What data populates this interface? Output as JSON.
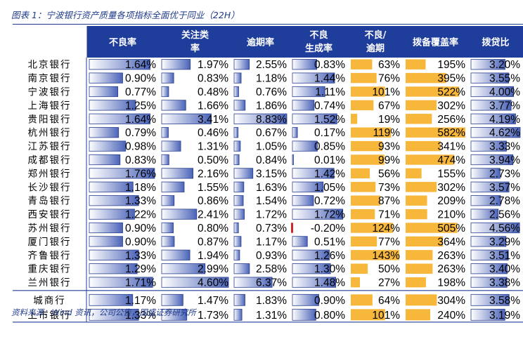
{
  "title": "图表 1：宁波银行资产质量各项指标全面优于同业（22H）",
  "source": "资料来源：Wind 资讯，公司公告，国盛证券研究所",
  "colors": {
    "header_bg": "#1f3e9c",
    "bar_blue": "#4a63b8",
    "bar_yellow": "#f7b73a",
    "bar_red": "#cc2a2a"
  },
  "chart_data": {
    "type": "table",
    "columns": [
      {
        "key": "npl",
        "label": [
          "不良率"
        ],
        "unit": "%",
        "decimals": 2,
        "max": 1.8
      },
      {
        "key": "attention",
        "label": [
          "关注类",
          "率"
        ],
        "unit": "%",
        "decimals": 2,
        "max": 4.6
      },
      {
        "key": "overdue",
        "label": [
          "逾期率"
        ],
        "unit": "%",
        "decimals": 2,
        "max": 8.83
      },
      {
        "key": "npl_gen",
        "label": [
          "不良",
          "生成率"
        ],
        "unit": "%",
        "decimals": 2,
        "max": 1.8
      },
      {
        "key": "npl_overdue",
        "label": [
          "不良/",
          "逾期"
        ],
        "unit": "%",
        "decimals": 0,
        "max": 145
      },
      {
        "key": "coverage",
        "label": [
          "拨备覆盖率"
        ],
        "unit": "%",
        "decimals": 0,
        "max": 582
      },
      {
        "key": "provision",
        "label": [
          "拨贷比"
        ],
        "unit": "%",
        "decimals": 2,
        "max": 4.62
      }
    ],
    "rows": [
      {
        "bank": "北京银行",
        "values": [
          1.64,
          1.97,
          2.55,
          0.83,
          63,
          195,
          3.2
        ]
      },
      {
        "bank": "南京银行",
        "values": [
          0.9,
          0.83,
          1.18,
          1.44,
          76,
          395,
          3.55
        ]
      },
      {
        "bank": "宁波银行",
        "values": [
          0.77,
          0.48,
          0.76,
          1.11,
          101,
          522,
          4.0
        ]
      },
      {
        "bank": "上海银行",
        "values": [
          1.25,
          1.66,
          1.86,
          0.74,
          67,
          302,
          3.77
        ]
      },
      {
        "bank": "贵阳银行",
        "values": [
          1.64,
          3.41,
          8.83,
          1.52,
          19,
          256,
          4.19
        ]
      },
      {
        "bank": "杭州银行",
        "values": [
          0.79,
          0.46,
          0.67,
          0.17,
          119,
          582,
          4.62
        ]
      },
      {
        "bank": "江苏银行",
        "values": [
          0.98,
          1.31,
          1.05,
          0.85,
          93,
          341,
          3.33
        ]
      },
      {
        "bank": "成都银行",
        "values": [
          0.83,
          0.5,
          0.84,
          0.01,
          99,
          474,
          3.94
        ]
      },
      {
        "bank": "郑州银行",
        "values": [
          1.76,
          2.16,
          3.15,
          1.42,
          56,
          155,
          2.73
        ]
      },
      {
        "bank": "长沙银行",
        "values": [
          1.18,
          1.55,
          1.63,
          1.05,
          73,
          302,
          3.57
        ]
      },
      {
        "bank": "青岛银行",
        "values": [
          1.33,
          0.86,
          1.54,
          0.72,
          87,
          209,
          2.78
        ]
      },
      {
        "bank": "西安银行",
        "values": [
          1.22,
          2.41,
          1.72,
          1.72,
          71,
          210,
          2.56
        ]
      },
      {
        "bank": "苏州银行",
        "values": [
          0.9,
          0.8,
          0.73,
          -0.2,
          124,
          505,
          4.56
        ]
      },
      {
        "bank": "厦门银行",
        "values": [
          0.9,
          0.87,
          1.17,
          0.51,
          77,
          364,
          3.29
        ]
      },
      {
        "bank": "齐鲁银行",
        "values": [
          1.33,
          1.94,
          0.93,
          1.26,
          143,
          263,
          3.51
        ]
      },
      {
        "bank": "重庆银行",
        "values": [
          1.29,
          2.99,
          2.58,
          1.3,
          50,
          263,
          3.4
        ]
      },
      {
        "bank": "兰州银行",
        "values": [
          1.71,
          4.6,
          6.37,
          1.48,
          27,
          198,
          3.38
        ]
      }
    ],
    "summary_rows": [
      {
        "bank": "城商行",
        "values": [
          1.17,
          1.47,
          1.83,
          0.9,
          64,
          304,
          3.58
        ]
      },
      {
        "bank": "上市银行",
        "values": [
          1.33,
          1.73,
          1.31,
          0.8,
          101,
          240,
          3.19
        ]
      }
    ]
  }
}
